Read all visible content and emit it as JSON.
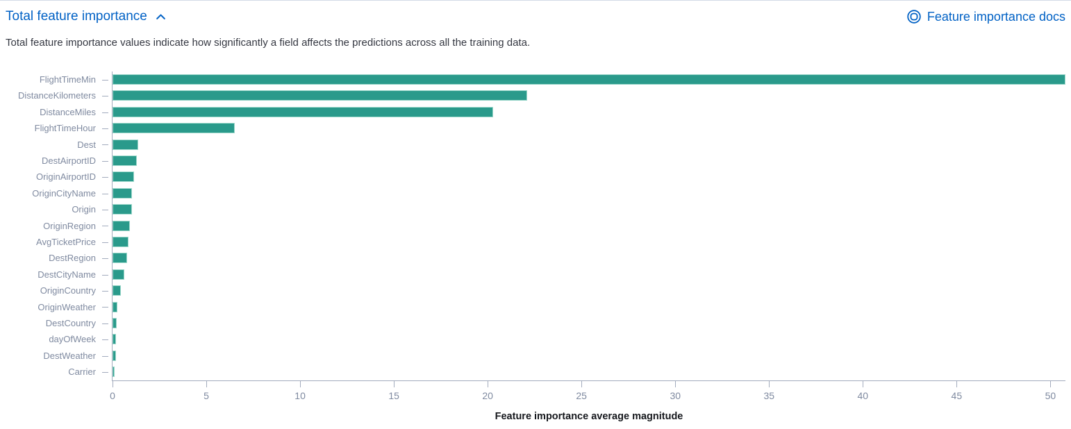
{
  "header": {
    "title": "Total feature importance",
    "collapse_icon": "chevron-up-icon",
    "docs_link_label": "Feature importance docs",
    "docs_icon": "help-lifebuoy-icon"
  },
  "description": "Total feature importance values indicate how significantly a field affects the predictions across all the training data.",
  "colors": {
    "link_blue": "#0061c5",
    "bar_fill": "#2a9a8b",
    "bar_stroke": "#9fd9cc",
    "axis_line": "#a2abbd",
    "axis_text": "#7f8aa0",
    "description_text": "#343741",
    "axis_title_text": "#16181d"
  },
  "chart_data": {
    "type": "bar",
    "orientation": "horizontal",
    "title": "Total feature importance",
    "xlabel": "Feature importance average magnitude",
    "ylabel": "",
    "categories": [
      "FlightTimeMin",
      "DistanceKilometers",
      "DistanceMiles",
      "FlightTimeHour",
      "Dest",
      "DestAirportID",
      "OriginAirportID",
      "OriginCityName",
      "Origin",
      "OriginRegion",
      "AvgTicketPrice",
      "DestRegion",
      "DestCityName",
      "OriginCountry",
      "OriginWeather",
      "DestCountry",
      "dayOfWeek",
      "DestWeather",
      "Carrier"
    ],
    "values": [
      50.8,
      22.1,
      20.3,
      6.5,
      1.37,
      1.3,
      1.15,
      1.05,
      1.02,
      0.93,
      0.85,
      0.78,
      0.64,
      0.46,
      0.26,
      0.24,
      0.2,
      0.18,
      0.1
    ],
    "x_ticks": [
      0,
      5,
      10,
      15,
      20,
      25,
      30,
      35,
      40,
      45,
      50
    ],
    "xlim": [
      0,
      50.8
    ],
    "grid": false,
    "legend": false
  }
}
